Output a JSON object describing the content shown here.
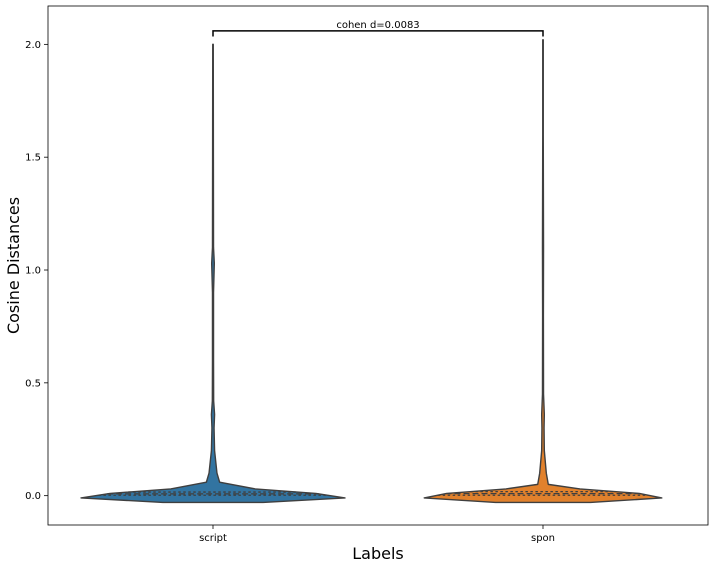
{
  "chart_data": {
    "type": "violin",
    "xlabel": "Labels",
    "ylabel": "Cosine Distances",
    "categories": [
      "script",
      "spon"
    ],
    "ylim": [
      -0.13,
      2.17
    ],
    "yticks": [
      0.0,
      0.5,
      1.0,
      1.5,
      2.0
    ],
    "ytick_labels": [
      "0.0",
      "0.5",
      "1.0",
      "1.5",
      "2.0"
    ],
    "grid": false,
    "inner": "quartile",
    "series": [
      {
        "category": "script",
        "color": "#3274a1",
        "min": -0.03,
        "max": 2.0,
        "quartiles": [
          0.002,
          0.008,
          0.016
        ],
        "profile": [
          {
            "y": -0.03,
            "w": 0.38
          },
          {
            "y": -0.01,
            "w": 1.0
          },
          {
            "y": 0.01,
            "w": 0.78
          },
          {
            "y": 0.03,
            "w": 0.32
          },
          {
            "y": 0.06,
            "w": 0.05
          },
          {
            "y": 0.1,
            "w": 0.03
          },
          {
            "y": 0.2,
            "w": 0.012
          },
          {
            "y": 0.3,
            "w": 0.008
          },
          {
            "y": 0.36,
            "w": 0.012
          },
          {
            "y": 0.42,
            "w": 0.005
          },
          {
            "y": 0.6,
            "w": 0.004
          },
          {
            "y": 0.9,
            "w": 0.004
          },
          {
            "y": 1.03,
            "w": 0.01
          },
          {
            "y": 1.1,
            "w": 0.004
          },
          {
            "y": 1.5,
            "w": 0.003
          },
          {
            "y": 2.0,
            "w": 0.002
          }
        ]
      },
      {
        "category": "spon",
        "color": "#e1812c",
        "min": -0.03,
        "max": 2.02,
        "quartiles": [
          0.002,
          0.009,
          0.018
        ],
        "profile": [
          {
            "y": -0.03,
            "w": 0.36
          },
          {
            "y": -0.01,
            "w": 0.9
          },
          {
            "y": 0.01,
            "w": 0.73
          },
          {
            "y": 0.03,
            "w": 0.28
          },
          {
            "y": 0.05,
            "w": 0.04
          },
          {
            "y": 0.1,
            "w": 0.025
          },
          {
            "y": 0.2,
            "w": 0.01
          },
          {
            "y": 0.3,
            "w": 0.008
          },
          {
            "y": 0.36,
            "w": 0.01
          },
          {
            "y": 0.45,
            "w": 0.004
          },
          {
            "y": 0.8,
            "w": 0.003
          },
          {
            "y": 1.1,
            "w": 0.004
          },
          {
            "y": 1.6,
            "w": 0.002
          },
          {
            "y": 2.02,
            "w": 0.002
          }
        ]
      }
    ],
    "annotations": [
      {
        "text": "cohen d=0.0083",
        "between": [
          "script",
          "spon"
        ],
        "y": 2.06
      }
    ]
  }
}
